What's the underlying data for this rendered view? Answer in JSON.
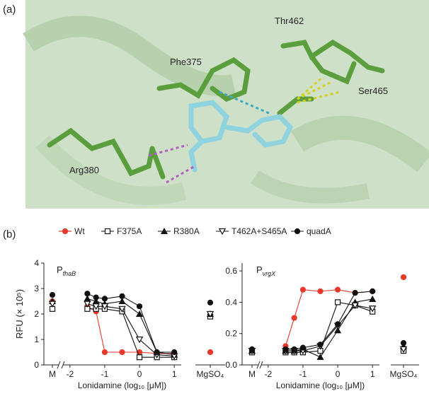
{
  "panel_a": {
    "label": "(a)",
    "residues": [
      "Phe375",
      "Thr462",
      "Ser465",
      "Arg380"
    ]
  },
  "panel_b": {
    "label": "(b)"
  },
  "chart_data": [
    {
      "type": "line",
      "title": "P",
      "title_sub": "fhaB",
      "y_label": "RFU (× 10⁵)",
      "x_label": "Lonidamine (log₁₀ [μM])",
      "x": [
        -1.5,
        -1.25,
        -1,
        -0.5,
        0,
        0.5,
        1
      ],
      "xlim": [
        -2.2,
        1.2
      ],
      "xticks": [
        -2,
        -1,
        0,
        1
      ],
      "ylim": [
        0,
        4
      ],
      "yticks": [
        0,
        1,
        2,
        3,
        4
      ],
      "extra_categories": [
        "M",
        "MgSO₄"
      ],
      "series": [
        {
          "name": "Wt",
          "color": "#e8392a",
          "marker": "circle",
          "values": [
            2.3,
            2.1,
            0.5,
            0.5,
            0.5,
            0.45,
            0.45
          ],
          "extra_values": [
            2.5,
            0.5
          ]
        },
        {
          "name": "F375A",
          "color": "#111111",
          "marker": "square-open",
          "values": [
            2.2,
            2.2,
            2.2,
            2.1,
            0.3,
            0.3,
            0.3
          ],
          "extra_values": [
            2.2,
            1.9
          ]
        },
        {
          "name": "R380A",
          "color": "#111111",
          "marker": "triangle",
          "values": [
            2.6,
            2.5,
            2.4,
            2.5,
            2.0,
            0.5,
            0.4
          ],
          "extra_values": [
            2.5,
            2.0
          ]
        },
        {
          "name": "T462A+S465A",
          "color": "#111111",
          "marker": "triangle-down-open",
          "values": [
            2.4,
            2.3,
            2.3,
            2.2,
            1.0,
            0.4,
            0.35
          ],
          "extra_values": [
            2.4,
            2.0
          ]
        },
        {
          "name": "quadA",
          "color": "#111111",
          "marker": "circle",
          "values": [
            2.8,
            2.65,
            2.6,
            2.7,
            2.3,
            0.5,
            0.5
          ],
          "extra_values": [
            2.75,
            2.45
          ]
        }
      ]
    },
    {
      "type": "line",
      "title": "P",
      "title_sub": "vrgX",
      "x_label": "Lonidamine (log₁₀ [μM])",
      "x": [
        -1.5,
        -1.25,
        -1,
        -0.5,
        0,
        0.5,
        1
      ],
      "xlim": [
        -2.2,
        1.2
      ],
      "xticks": [
        -2,
        -1,
        0,
        1
      ],
      "ylim": [
        0,
        0.65
      ],
      "yticks": [
        {
          "value": 0,
          "label": "0.0"
        },
        {
          "value": 0.2,
          "label": "0.2"
        },
        {
          "value": 0.4,
          "label": "0.4"
        },
        {
          "value": 0.6,
          "label": "0.6"
        }
      ],
      "extra_categories": [
        "M",
        "MgSO₄"
      ],
      "series": [
        {
          "values": [
            0.12,
            0.3,
            0.48,
            0.47,
            0.48,
            0.46,
            0.47
          ],
          "extra_values": [
            0.1,
            0.56
          ]
        },
        {
          "values": [
            0.08,
            0.08,
            0.08,
            0.09,
            0.4,
            0.38,
            0.34
          ],
          "extra_values": [
            0.08,
            0.09
          ]
        },
        {
          "values": [
            0.09,
            0.09,
            0.1,
            0.05,
            0.22,
            0.4,
            0.42
          ],
          "extra_values": [
            0.09,
            0.12
          ]
        },
        {
          "values": [
            0.09,
            0.09,
            0.09,
            0.12,
            0.25,
            0.38,
            0.36
          ],
          "extra_values": [
            0.09,
            0.1
          ]
        },
        {
          "values": [
            0.1,
            0.1,
            0.11,
            0.13,
            0.26,
            0.46,
            0.47
          ],
          "extra_values": [
            0.1,
            0.14
          ]
        }
      ]
    }
  ]
}
